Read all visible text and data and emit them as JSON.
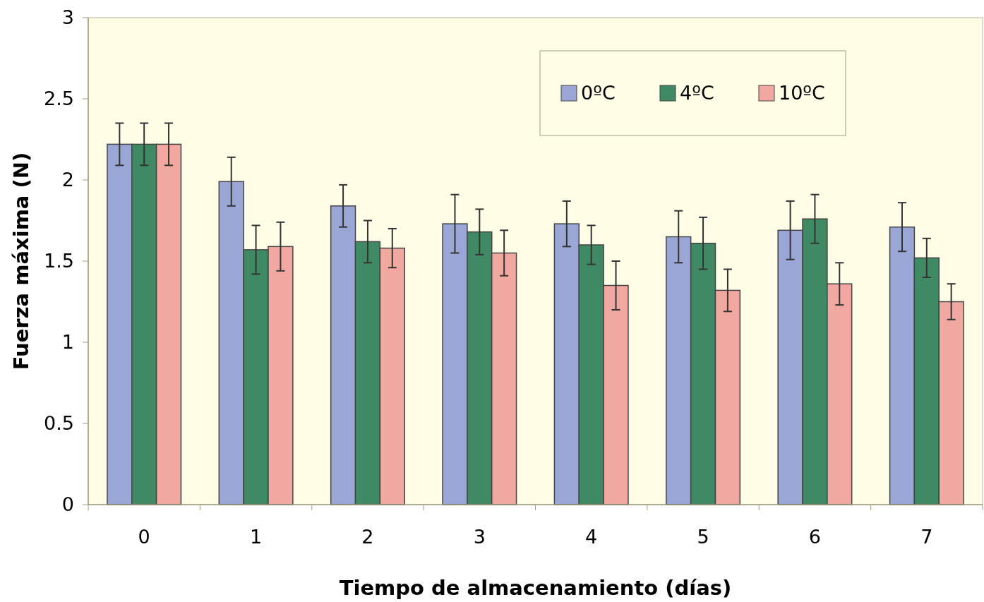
{
  "chart_data": {
    "type": "bar",
    "xlabel": "Tiempo de almacenamiento (días)",
    "ylabel": "Fuerza máxima (N)",
    "categories": [
      "0",
      "1",
      "2",
      "3",
      "4",
      "5",
      "6",
      "7"
    ],
    "series": [
      {
        "name": "0ºC",
        "color": "#9aa6d6",
        "values": [
          2.22,
          1.99,
          1.84,
          1.73,
          1.73,
          1.65,
          1.69,
          1.71
        ],
        "errors": [
          0.13,
          0.15,
          0.13,
          0.18,
          0.14,
          0.16,
          0.18,
          0.15
        ]
      },
      {
        "name": "4ºC",
        "color": "#3f8a64",
        "values": [
          2.22,
          1.57,
          1.62,
          1.68,
          1.6,
          1.61,
          1.76,
          1.52
        ],
        "errors": [
          0.13,
          0.15,
          0.13,
          0.14,
          0.12,
          0.16,
          0.15,
          0.12
        ]
      },
      {
        "name": "10ºC",
        "color": "#f0a8a0",
        "values": [
          2.22,
          1.59,
          1.58,
          1.55,
          1.35,
          1.32,
          1.36,
          1.25
        ],
        "errors": [
          0.13,
          0.15,
          0.12,
          0.14,
          0.15,
          0.13,
          0.13,
          0.11
        ]
      }
    ],
    "ylim": [
      0,
      3
    ],
    "yticks": [
      0,
      0.5,
      1,
      1.5,
      2,
      2.5,
      3
    ],
    "legend": "top right",
    "grid": false
  }
}
